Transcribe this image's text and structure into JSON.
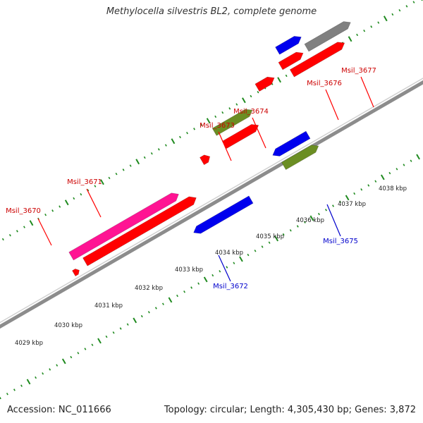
{
  "title": "Methylocella silvestris BL2, complete genome",
  "footer": {
    "accession": "Accession: NC_011666",
    "summary": "Topology: circular; Length: 4,305,430 bp; Genes: 3,872"
  },
  "colors": {
    "forward_gene": "#ff0000",
    "reverse_gene": "#0000ee",
    "forward_label": "#cc0000",
    "reverse_label": "#0000cc",
    "rna": "#6b8e23",
    "pink_feature": "#ff1493",
    "grey_feature": "#808080",
    "backbone": "#8c8c8c",
    "tick": "#1f8a1f"
  },
  "scale": {
    "unit": "kbp",
    "visible_range": [
      4029,
      4038
    ]
  },
  "kbp_labels": [
    "4029 kbp",
    "4030 kbp",
    "4031 kbp",
    "4032 kbp",
    "4033 kbp",
    "4034 kbp",
    "4035 kbp",
    "4036 kbp",
    "4037 kbp",
    "4038 kbp"
  ],
  "genes": [
    {
      "label": "Msil_3670",
      "strand": "forward"
    },
    {
      "label": "Msil_3671",
      "strand": "forward"
    },
    {
      "label": "Msil_3672",
      "strand": "reverse"
    },
    {
      "label": "Msil_3673",
      "strand": "forward"
    },
    {
      "label": "Msil_3674",
      "strand": "forward"
    },
    {
      "label": "Msil_3675",
      "strand": "reverse"
    },
    {
      "label": "Msil_3676",
      "strand": "forward"
    },
    {
      "label": "Msil_3677",
      "strand": "forward"
    }
  ]
}
